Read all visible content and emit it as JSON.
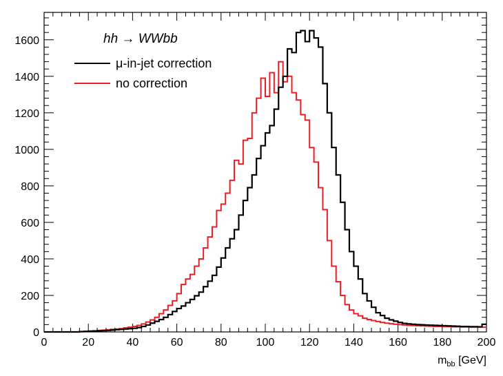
{
  "chart_data": {
    "type": "line",
    "step": true,
    "title": "",
    "xlabel": "m",
    "xlabel_sub": "bb",
    "xlabel_unit": " [GeV]",
    "xlim": [
      0,
      200
    ],
    "ylim": [
      0,
      1750
    ],
    "grid": false,
    "legend_placement": "top-left",
    "legend_title": "hh → WWbb",
    "x_ticks": [
      "0",
      "20",
      "40",
      "60",
      "80",
      "100",
      "120",
      "140",
      "160",
      "180",
      "200"
    ],
    "y_ticks": [
      "0",
      "200",
      "400",
      "600",
      "800",
      "1000",
      "1200",
      "1400",
      "1600"
    ],
    "bin_width": 2,
    "series": [
      {
        "name": "μ-in-jet correction",
        "color": "#000000",
        "values": [
          0,
          0,
          0,
          0,
          0,
          0,
          0,
          0,
          2,
          3,
          4,
          5,
          6,
          7,
          8,
          10,
          12,
          14,
          16,
          18,
          20,
          24,
          30,
          38,
          48,
          58,
          68,
          80,
          95,
          112,
          128,
          142,
          160,
          178,
          198,
          218,
          248,
          278,
          310,
          355,
          405,
          460,
          510,
          560,
          640,
          720,
          790,
          860,
          950,
          1020,
          1090,
          1130,
          1220,
          1340,
          1400,
          1550,
          1530,
          1640,
          1650,
          1590,
          1650,
          1610,
          1560,
          1360,
          1200,
          1010,
          860,
          710,
          560,
          440,
          360,
          290,
          210,
          170,
          135,
          105,
          90,
          75,
          66,
          59,
          52,
          47,
          44,
          42,
          40,
          39,
          38,
          37,
          36,
          35,
          34,
          33,
          32,
          31,
          30,
          30,
          29,
          29,
          28,
          42
        ]
      },
      {
        "name": "no correction",
        "color": "#ee1c24",
        "values": [
          0,
          0,
          0,
          0,
          0,
          0,
          0,
          0,
          2,
          4,
          5,
          6,
          8,
          10,
          12,
          14,
          16,
          18,
          22,
          26,
          30,
          36,
          44,
          54,
          66,
          80,
          100,
          120,
          145,
          170,
          210,
          260,
          290,
          315,
          360,
          400,
          460,
          520,
          575,
          665,
          700,
          760,
          830,
          940,
          920,
          1050,
          1060,
          1200,
          1280,
          1390,
          1290,
          1420,
          1310,
          1480,
          1370,
          1400,
          1310,
          1270,
          1190,
          1160,
          1010,
          930,
          790,
          670,
          500,
          360,
          275,
          200,
          150,
          120,
          100,
          88,
          75,
          68,
          62,
          57,
          52,
          48,
          45,
          42,
          40,
          38,
          36,
          35,
          34,
          33,
          32,
          31,
          30,
          30,
          29,
          29,
          28,
          28,
          27,
          27,
          26,
          26,
          26,
          26
        ]
      }
    ]
  }
}
